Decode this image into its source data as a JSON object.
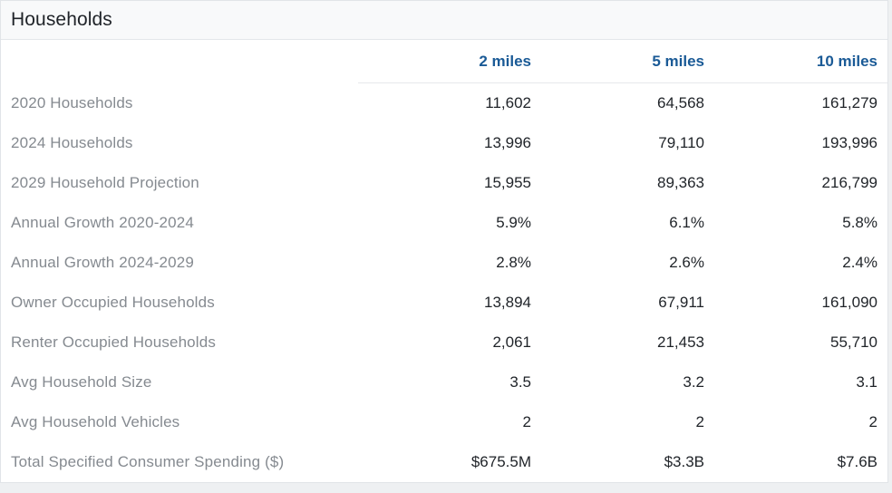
{
  "panel": {
    "title": "Households"
  },
  "table": {
    "columns": [
      "2 miles",
      "5 miles",
      "10 miles"
    ],
    "rows": [
      {
        "label": "2020 Households",
        "values": [
          "11,602",
          "64,568",
          "161,279"
        ]
      },
      {
        "label": "2024 Households",
        "values": [
          "13,996",
          "79,110",
          "193,996"
        ]
      },
      {
        "label": "2029 Household Projection",
        "values": [
          "15,955",
          "89,363",
          "216,799"
        ]
      },
      {
        "label": "Annual Growth 2020-2024",
        "values": [
          "5.9%",
          "6.1%",
          "5.8%"
        ]
      },
      {
        "label": "Annual Growth 2024-2029",
        "values": [
          "2.8%",
          "2.6%",
          "2.4%"
        ]
      },
      {
        "label": "Owner Occupied Households",
        "values": [
          "13,894",
          "67,911",
          "161,090"
        ]
      },
      {
        "label": "Renter Occupied Households",
        "values": [
          "2,061",
          "21,453",
          "55,710"
        ]
      },
      {
        "label": "Avg Household Size",
        "values": [
          "3.5",
          "3.2",
          "3.1"
        ]
      },
      {
        "label": "Avg Household Vehicles",
        "values": [
          "2",
          "2",
          "2"
        ]
      },
      {
        "label": "Total Specified Consumer Spending ($)",
        "values": [
          "$675.5M",
          "$3.3B",
          "$7.6B"
        ]
      }
    ]
  },
  "colors": {
    "header_accent": "#1a5a96",
    "label_text": "#858a90",
    "value_text": "#1f2328"
  }
}
